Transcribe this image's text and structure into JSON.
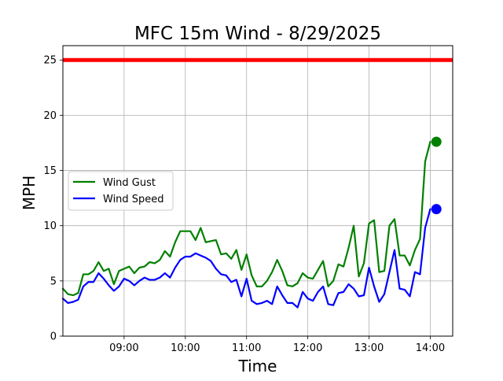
{
  "chart_data": {
    "type": "line",
    "title": "MFC 15m Wind - 8/29/2025",
    "xlabel": "Time",
    "ylabel": "MPH",
    "xlim": [
      "08:00",
      "14:22"
    ],
    "ylim": [
      0,
      26.3
    ],
    "x_ticks": [
      "09:00",
      "10:00",
      "11:00",
      "12:00",
      "13:00",
      "14:00"
    ],
    "y_ticks": [
      0,
      5,
      10,
      15,
      20,
      25
    ],
    "grid": true,
    "legend_position": "center-left",
    "reference_line": {
      "value": 25,
      "color": "#ff0000"
    },
    "interval_minutes": 5,
    "x": [
      "08:00",
      "08:05",
      "08:10",
      "08:15",
      "08:20",
      "08:25",
      "08:30",
      "08:35",
      "08:40",
      "08:45",
      "08:50",
      "08:55",
      "09:00",
      "09:05",
      "09:10",
      "09:15",
      "09:20",
      "09:25",
      "09:30",
      "09:35",
      "09:40",
      "09:45",
      "09:50",
      "09:55",
      "10:00",
      "10:05",
      "10:10",
      "10:15",
      "10:20",
      "10:25",
      "10:30",
      "10:35",
      "10:40",
      "10:45",
      "10:50",
      "10:55",
      "11:00",
      "11:05",
      "11:10",
      "11:15",
      "11:20",
      "11:25",
      "11:30",
      "11:35",
      "11:40",
      "11:45",
      "11:50",
      "11:55",
      "12:00",
      "12:05",
      "12:10",
      "12:15",
      "12:20",
      "12:25",
      "12:30",
      "12:35",
      "12:40",
      "12:45",
      "12:50",
      "12:55",
      "13:00",
      "13:05",
      "13:10",
      "13:15",
      "13:20",
      "13:25",
      "13:30",
      "13:35",
      "13:40",
      "13:45",
      "13:50",
      "13:55",
      "14:00",
      "14:05"
    ],
    "series": [
      {
        "name": "Wind Gust",
        "color": "#008000",
        "values": [
          4.3,
          3.8,
          3.7,
          3.9,
          5.6,
          5.6,
          5.9,
          6.7,
          5.9,
          6.1,
          4.7,
          5.9,
          6.1,
          6.3,
          5.7,
          6.2,
          6.3,
          6.7,
          6.6,
          6.9,
          7.7,
          7.2,
          8.5,
          9.5,
          9.5,
          9.5,
          8.7,
          9.8,
          8.5,
          8.6,
          8.7,
          7.4,
          7.5,
          7.0,
          7.8,
          6.0,
          7.4,
          5.5,
          4.5,
          4.5,
          5.0,
          5.8,
          6.9,
          5.9,
          4.6,
          4.5,
          4.8,
          5.7,
          5.3,
          5.2,
          6.0,
          6.8,
          4.5,
          5.0,
          6.5,
          6.3,
          8.0,
          10.0,
          5.4,
          6.6,
          10.2,
          10.5,
          5.8,
          5.9,
          10.0,
          10.6,
          7.3,
          7.3,
          6.4,
          7.8,
          8.8,
          15.8,
          17.6,
          null
        ]
      },
      {
        "name": "Wind Speed",
        "color": "#0000ff",
        "values": [
          3.4,
          3.0,
          3.1,
          3.3,
          4.5,
          4.9,
          4.9,
          5.7,
          5.2,
          4.6,
          4.1,
          4.5,
          5.2,
          5.0,
          4.6,
          5.0,
          5.3,
          5.1,
          5.1,
          5.3,
          5.7,
          5.3,
          6.2,
          6.9,
          7.2,
          7.2,
          7.5,
          7.3,
          7.1,
          6.8,
          6.1,
          5.6,
          5.5,
          4.9,
          5.1,
          3.6,
          5.2,
          3.2,
          2.9,
          3.0,
          3.2,
          2.9,
          4.5,
          3.7,
          3.0,
          3.0,
          2.6,
          4.0,
          3.4,
          3.2,
          4.0,
          4.5,
          2.9,
          2.8,
          3.9,
          4.0,
          4.7,
          4.3,
          3.6,
          3.7,
          6.2,
          4.5,
          3.1,
          3.8,
          5.8,
          7.8,
          4.3,
          4.2,
          3.6,
          5.8,
          5.6,
          9.8,
          11.5,
          null
        ]
      }
    ],
    "end_markers": [
      {
        "series": "Wind Gust",
        "x": "14:06",
        "value": 17.6
      },
      {
        "series": "Wind Speed",
        "x": "14:06",
        "value": 11.5
      }
    ]
  }
}
